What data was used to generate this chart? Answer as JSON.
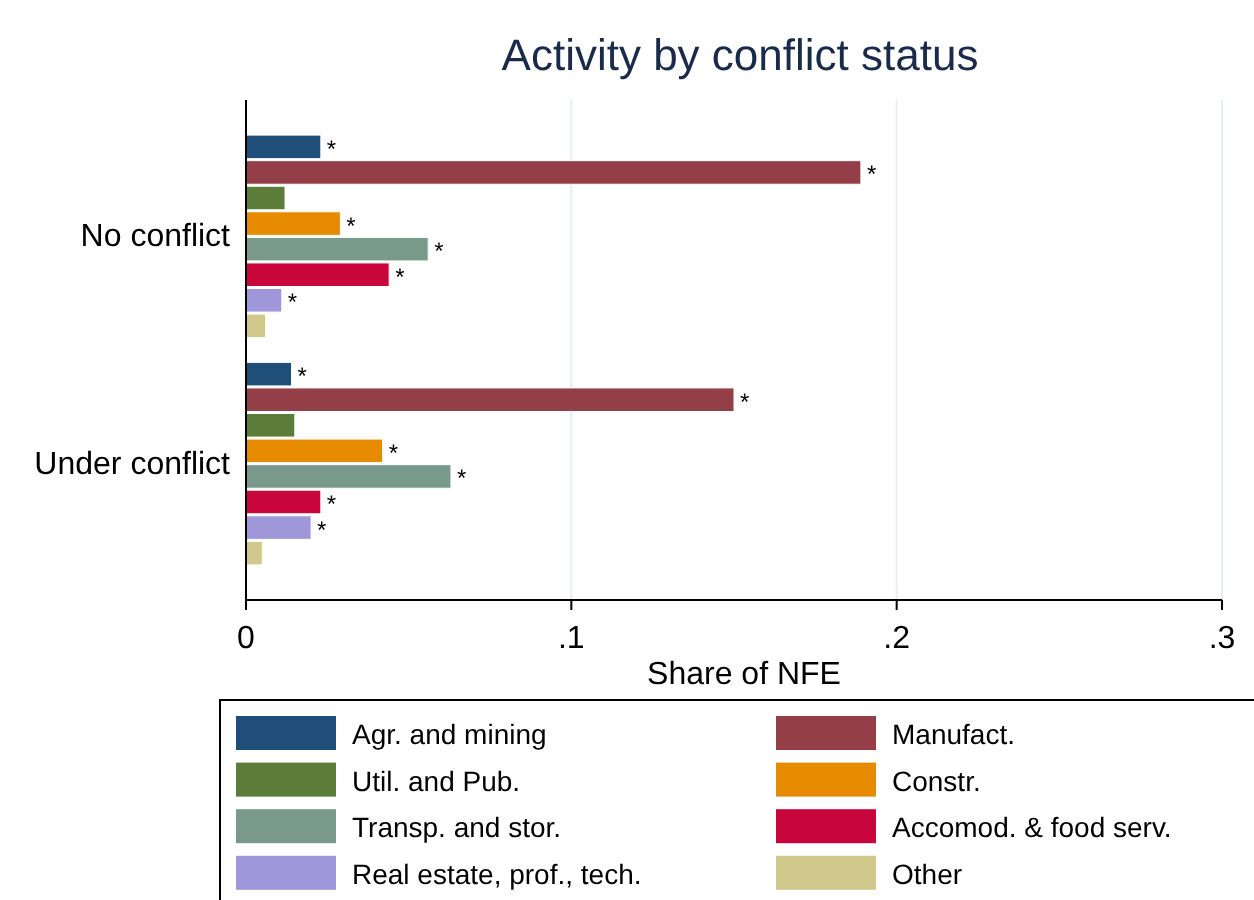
{
  "chart_data": {
    "type": "bar",
    "orientation": "horizontal",
    "title": "Activity by conflict status",
    "xlabel": "Share of NFE",
    "categories": [
      "No conflict",
      "Under conflict"
    ],
    "series": [
      {
        "name": "Agr. and mining",
        "color": "#1f4e79",
        "values": [
          0.023,
          0.014
        ],
        "value_labels": [
          "*",
          "*"
        ]
      },
      {
        "name": "Manufact.",
        "color": "#943f48",
        "values": [
          0.189,
          0.15
        ],
        "value_labels": [
          "*",
          "*"
        ]
      },
      {
        "name": "Util. and Pub.",
        "color": "#5c7d3a",
        "values": [
          0.012,
          0.015
        ],
        "value_labels": [
          null,
          null
        ]
      },
      {
        "name": "Constr.",
        "color": "#e68a00",
        "values": [
          0.029,
          0.042
        ],
        "value_labels": [
          "*",
          "*"
        ]
      },
      {
        "name": "Transp. and stor.",
        "color": "#799a8a",
        "values": [
          0.056,
          0.063
        ],
        "value_labels": [
          "*",
          "*"
        ]
      },
      {
        "name": "Accomod. & food serv.",
        "color": "#c8063c",
        "values": [
          0.044,
          0.023
        ],
        "value_labels": [
          "*",
          "*"
        ]
      },
      {
        "name": "Real estate, prof., tech.",
        "color": "#9f97d9",
        "values": [
          0.011,
          0.02
        ],
        "value_labels": [
          "*",
          "*"
        ]
      },
      {
        "name": "Other",
        "color": "#d1c98b",
        "values": [
          0.006,
          0.005
        ],
        "value_labels": [
          null,
          null
        ]
      }
    ],
    "xlim": [
      0,
      0.3
    ],
    "xticks": [
      0,
      {
        "value": 0.1,
        "label": ".1"
      },
      {
        "value": 0.2,
        "label": ".2"
      },
      {
        "value": 0.3,
        "label": ".3"
      }
    ],
    "grid": "x",
    "legend": "bottom"
  }
}
